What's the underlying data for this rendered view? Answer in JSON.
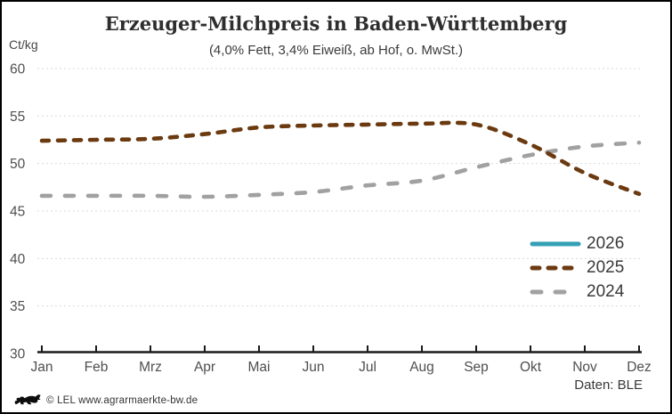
{
  "header": {
    "title": "Erzeuger-Milchpreis in Baden-Württemberg",
    "subtitle": "(4,0% Fett, 3,4% Eiweiß, ab Hof, o. MwSt.)",
    "unit_label": "Ct/kg"
  },
  "chart_data": {
    "type": "line",
    "title": "Erzeuger-Milchpreis in Baden-Württemberg",
    "subtitle": "(4,0% Fett, 3,4% Eiweiß, ab Hof, o. MwSt.)",
    "ylabel": "Ct/kg",
    "xlabel": "",
    "ylim": [
      30,
      60
    ],
    "yticks": [
      30,
      35,
      40,
      45,
      50,
      55,
      60
    ],
    "grid": "horizontal-dashed",
    "legend_position": "inside-right",
    "categories": [
      "Jan",
      "Feb",
      "Mrz",
      "Apr",
      "Mai",
      "Jun",
      "Jul",
      "Aug",
      "Sep",
      "Okt",
      "Nov",
      "Dez"
    ],
    "series": [
      {
        "name": "2026",
        "color": "#35a0b5",
        "dash": "solid",
        "values": []
      },
      {
        "name": "2025",
        "color": "#6b3a10",
        "dash": "short-dash",
        "values": [
          52.4,
          52.5,
          52.6,
          53.1,
          53.8,
          54.0,
          54.1,
          54.2,
          54.1,
          52.0,
          49.0,
          46.8
        ]
      },
      {
        "name": "2024",
        "color": "#a1a1a1",
        "dash": "long-dash",
        "values": [
          46.6,
          46.6,
          46.6,
          46.5,
          46.7,
          47.0,
          47.7,
          48.2,
          49.6,
          50.9,
          51.8,
          52.2
        ]
      }
    ]
  },
  "colors": {
    "grid": "#dadada",
    "axis": "#1a1a1a",
    "tick_label": "#4f4f4f"
  },
  "footer": {
    "credit": "© LEL www.agrarmaerkte-bw.de",
    "source": "Daten: BLE"
  }
}
